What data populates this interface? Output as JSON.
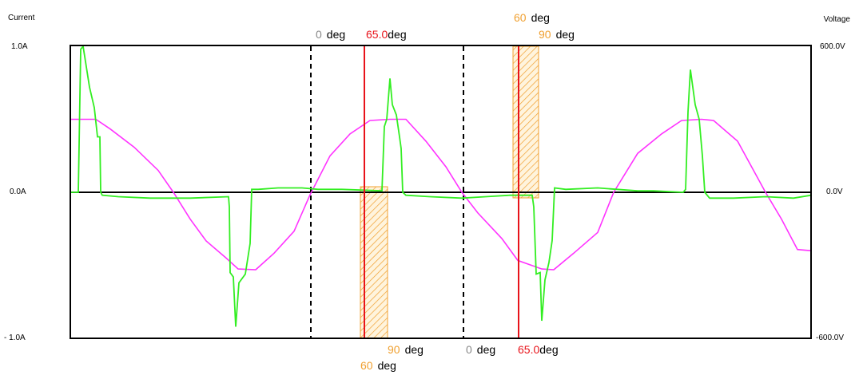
{
  "chart_data": {
    "type": "line",
    "title": "",
    "left_axis": {
      "title": "Current",
      "ticks": [
        "1.0A",
        "0.0A",
        "- 1.0A"
      ],
      "range": [
        -1.0,
        1.0
      ],
      "unit": "A"
    },
    "right_axis": {
      "title": "Voltage",
      "ticks": [
        "600.0V",
        "0.0V",
        "-600.0V"
      ],
      "range": [
        -600,
        600
      ],
      "unit": "V"
    },
    "grid": false,
    "series": [
      {
        "axis": "right",
        "color": "#ff33ff",
        "points": [
          [
            0,
            300
          ],
          [
            15,
            300
          ],
          [
            32,
            300
          ],
          [
            50,
            260
          ],
          [
            80,
            185
          ],
          [
            110,
            90
          ],
          [
            130,
            -5
          ],
          [
            150,
            -110
          ],
          [
            170,
            -200
          ],
          [
            195,
            -270
          ],
          [
            210,
            -315
          ],
          [
            232,
            -318
          ],
          [
            255,
            -250
          ],
          [
            280,
            -160
          ],
          [
            300,
            -10
          ],
          [
            325,
            150
          ],
          [
            350,
            240
          ],
          [
            375,
            295
          ],
          [
            400,
            300
          ],
          [
            420,
            300
          ],
          [
            445,
            210
          ],
          [
            470,
            105
          ],
          [
            490,
            0
          ],
          [
            510,
            -85
          ],
          [
            540,
            -190
          ],
          [
            560,
            -280
          ],
          [
            590,
            -315
          ],
          [
            605,
            -318
          ],
          [
            630,
            -250
          ],
          [
            660,
            -165
          ],
          [
            680,
            0
          ],
          [
            710,
            160
          ],
          [
            740,
            240
          ],
          [
            765,
            295
          ],
          [
            790,
            300
          ],
          [
            805,
            295
          ],
          [
            835,
            210
          ],
          [
            870,
            0
          ],
          [
            890,
            -110
          ],
          [
            910,
            -235
          ],
          [
            927,
            -240
          ]
        ]
      },
      {
        "axis": "left",
        "color": "#33ee22",
        "points": [
          [
            0,
            0
          ],
          [
            10,
            0
          ],
          [
            13,
            0.98
          ],
          [
            16,
            1.0
          ],
          [
            24,
            0.72
          ],
          [
            30,
            0.58
          ],
          [
            34,
            0.38
          ],
          [
            37,
            0.38
          ],
          [
            38,
            0
          ],
          [
            40,
            -0.02
          ],
          [
            60,
            -0.03
          ],
          [
            100,
            -0.04
          ],
          [
            150,
            -0.04
          ],
          [
            198,
            -0.03
          ],
          [
            199,
            -0.1
          ],
          [
            200,
            -0.55
          ],
          [
            204,
            -0.58
          ],
          [
            207,
            -0.92
          ],
          [
            211,
            -0.62
          ],
          [
            219,
            -0.56
          ],
          [
            225,
            -0.35
          ],
          [
            227,
            0.02
          ],
          [
            235,
            0.02
          ],
          [
            260,
            0.03
          ],
          [
            290,
            0.03
          ],
          [
            310,
            0.02
          ],
          [
            340,
            0.02
          ],
          [
            390,
            0.01
          ],
          [
            393,
            0.45
          ],
          [
            396,
            0.5
          ],
          [
            400,
            0.78
          ],
          [
            403,
            0.6
          ],
          [
            408,
            0.53
          ],
          [
            412,
            0.38
          ],
          [
            414,
            0.3
          ],
          [
            416,
            0.0
          ],
          [
            420,
            -0.02
          ],
          [
            450,
            -0.03
          ],
          [
            490,
            -0.04
          ],
          [
            520,
            -0.03
          ],
          [
            550,
            -0.02
          ],
          [
            578,
            -0.02
          ],
          [
            580,
            -0.1
          ],
          [
            583,
            -0.56
          ],
          [
            588,
            -0.55
          ],
          [
            590,
            -0.88
          ],
          [
            594,
            -0.6
          ],
          [
            599,
            -0.48
          ],
          [
            603,
            -0.33
          ],
          [
            606,
            0.03
          ],
          [
            620,
            0.02
          ],
          [
            660,
            0.03
          ],
          [
            710,
            0.01
          ],
          [
            730,
            0.01
          ],
          [
            767,
            0.0
          ],
          [
            770,
            0.02
          ],
          [
            773,
            0.55
          ],
          [
            776,
            0.84
          ],
          [
            782,
            0.6
          ],
          [
            787,
            0.5
          ],
          [
            791,
            0.25
          ],
          [
            794,
            0.0
          ],
          [
            800,
            -0.04
          ],
          [
            830,
            -0.04
          ],
          [
            870,
            -0.03
          ],
          [
            905,
            -0.04
          ],
          [
            927,
            -0.02
          ]
        ]
      }
    ],
    "annotations": {
      "zero_lines": [
        {
          "label_deg": "0",
          "label_unit": "deg",
          "position": "top"
        },
        {
          "label_deg": "0",
          "label_unit": "deg",
          "position": "bottom"
        }
      ],
      "red_lines": [
        {
          "label_value": "65.0",
          "label_unit": "deg",
          "position": "top"
        },
        {
          "label_value": "65.0",
          "label_unit": "deg",
          "position": "bottom"
        }
      ],
      "orange_boxes": [
        {
          "label_start": "60",
          "label_end": "90",
          "label_unit": "deg",
          "side": "below",
          "labels_position": "bottom"
        },
        {
          "label_start": "60",
          "label_end": "90",
          "label_unit": "deg",
          "side": "above",
          "labels_position": "top"
        }
      ]
    }
  }
}
